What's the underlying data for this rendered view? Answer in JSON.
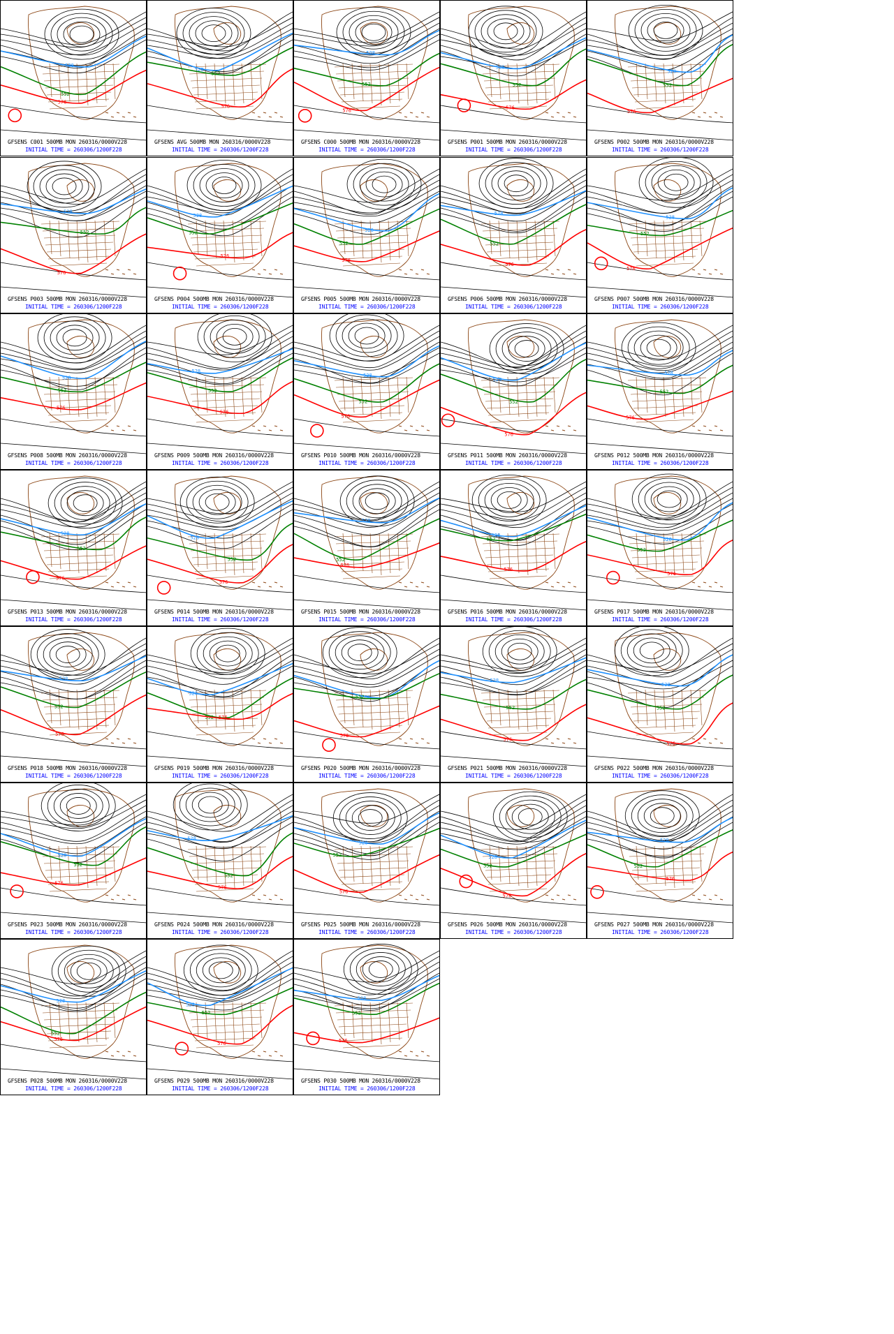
{
  "colors": {
    "contour": "#000000",
    "contour_blue": "#1e90ff",
    "contour_green": "#008000",
    "contour_red": "#ff0000",
    "map_lines": "#8b4513",
    "caption_blue": "#0000ff"
  },
  "initial_time_label": "INITIAL TIME = 260306/1200F228",
  "panels": [
    {
      "member": "C001",
      "caption": "GFSENS C001 500MB MON 260316/0000V228",
      "blue_label": "528",
      "green_label": "552",
      "red_label": "576"
    },
    {
      "member": "AVG",
      "caption": "GFSENS AVG 500MB MON 260316/0000V228",
      "blue_label": "528",
      "green_label": "552",
      "red_label": "576"
    },
    {
      "member": "C000",
      "caption": "GFSENS C000 500MB MON 260316/0000V228",
      "blue_label": "528",
      "green_label": "552",
      "red_label": "576"
    },
    {
      "member": "P001",
      "caption": "GFSENS P001 500MB MON 260316/0000V228",
      "blue_label": "528",
      "green_label": "552",
      "red_label": "576"
    },
    {
      "member": "P002",
      "caption": "GFSENS P002 500MB MON 260316/0000V228",
      "blue_label": "528",
      "green_label": "552",
      "red_label": "576"
    },
    {
      "member": "P003",
      "caption": "GFSENS P003 500MB MON 260316/0000V228",
      "blue_label": "528",
      "green_label": "552",
      "red_label": "576"
    },
    {
      "member": "P004",
      "caption": "GFSENS P004 500MB MON 260316/0000V228",
      "blue_label": "528",
      "green_label": "552",
      "red_label": "576"
    },
    {
      "member": "P005",
      "caption": "GFSENS P005 500MB MON 260316/0000V228",
      "blue_label": "528",
      "green_label": "552",
      "red_label": "576"
    },
    {
      "member": "P006",
      "caption": "GFSENS P006 500MB MON 260316/0000V228",
      "blue_label": "528",
      "green_label": "552",
      "red_label": "576"
    },
    {
      "member": "P007",
      "caption": "GFSENS P007 500MB MON 260316/0000V228",
      "blue_label": "528",
      "green_label": "552",
      "red_label": "576"
    },
    {
      "member": "P008",
      "caption": "GFSENS P008 500MB MON 260316/0000V228",
      "blue_label": "528",
      "green_label": "552",
      "red_label": "576"
    },
    {
      "member": "P009",
      "caption": "GFSENS P009 500MB MON 260316/0000V228",
      "blue_label": "528",
      "green_label": "552",
      "red_label": "576"
    },
    {
      "member": "P010",
      "caption": "GFSENS P010 500MB MON 260316/0000V228",
      "blue_label": "528",
      "green_label": "552",
      "red_label": "576"
    },
    {
      "member": "P011",
      "caption": "GFSENS P011 500MB MON 260316/0000V228",
      "blue_label": "528",
      "green_label": "552",
      "red_label": "576"
    },
    {
      "member": "P012",
      "caption": "GFSENS P012 500MB MON 260316/0000V228",
      "blue_label": "528",
      "green_label": "552",
      "red_label": "576"
    },
    {
      "member": "P013",
      "caption": "GFSENS P013 500MB MON 260316/0000V228",
      "blue_label": "528",
      "green_label": "552",
      "red_label": "576"
    },
    {
      "member": "P014",
      "caption": "GFSENS P014 500MB MON 260316/0000V228",
      "blue_label": "528",
      "green_label": "552",
      "red_label": "576"
    },
    {
      "member": "P015",
      "caption": "GFSENS P015 500MB MON 260316/0000V228",
      "blue_label": "528",
      "green_label": "552",
      "red_label": "576"
    },
    {
      "member": "P016",
      "caption": "GFSENS P016 500MB MON 260316/0000V228",
      "blue_label": "528",
      "green_label": "552",
      "red_label": "576"
    },
    {
      "member": "P017",
      "caption": "GFSENS P017 500MB MON 260316/0000V228",
      "blue_label": "528",
      "green_label": "552",
      "red_label": "576"
    },
    {
      "member": "P018",
      "caption": "GFSENS P018 500MB MON 260316/0000V228",
      "blue_label": "528",
      "green_label": "552",
      "red_label": "576"
    },
    {
      "member": "P019",
      "caption": "GFSENS P019 500MB MON 260316/0000V228",
      "blue_label": "528",
      "green_label": "552",
      "red_label": "576"
    },
    {
      "member": "P020",
      "caption": "GFSENS P020 500MB MON 260316/0000V228",
      "blue_label": "528",
      "green_label": "552",
      "red_label": "576"
    },
    {
      "member": "P021",
      "caption": "GFSENS P021 500MB MON 260316/0000V228",
      "blue_label": "528",
      "green_label": "552",
      "red_label": "576"
    },
    {
      "member": "P022",
      "caption": "GFSENS P022 500MB MON 260316/0000V228",
      "blue_label": "528",
      "green_label": "552",
      "red_label": "576"
    },
    {
      "member": "P023",
      "caption": "GFSENS P023 500MB MON 260316/0000V228",
      "blue_label": "528",
      "green_label": "552",
      "red_label": "576"
    },
    {
      "member": "P024",
      "caption": "GFSENS P024 500MB MON 260316/0000V228",
      "blue_label": "528",
      "green_label": "552",
      "red_label": "576"
    },
    {
      "member": "P025",
      "caption": "GFSENS P025 500MB MON 260316/0000V228",
      "blue_label": "528",
      "green_label": "552",
      "red_label": "576"
    },
    {
      "member": "P026",
      "caption": "GFSENS P026 500MB MON 260316/0000V228",
      "blue_label": "528",
      "green_label": "552",
      "red_label": "576"
    },
    {
      "member": "P027",
      "caption": "GFSENS P027 500MB MON 260316/0000V228",
      "blue_label": "528",
      "green_label": "552",
      "red_label": "576"
    },
    {
      "member": "P028",
      "caption": "GFSENS P028 500MB MON 260316/0000V228",
      "blue_label": "528",
      "green_label": "552",
      "red_label": "576"
    },
    {
      "member": "P029",
      "caption": "GFSENS P029 500MB MON 260316/0000V228",
      "blue_label": "528",
      "green_label": "552",
      "red_label": "576"
    },
    {
      "member": "P030",
      "caption": "GFSENS P030 500MB MON 260316/0000V228",
      "blue_label": "528",
      "green_label": "552",
      "red_label": "576"
    }
  ]
}
